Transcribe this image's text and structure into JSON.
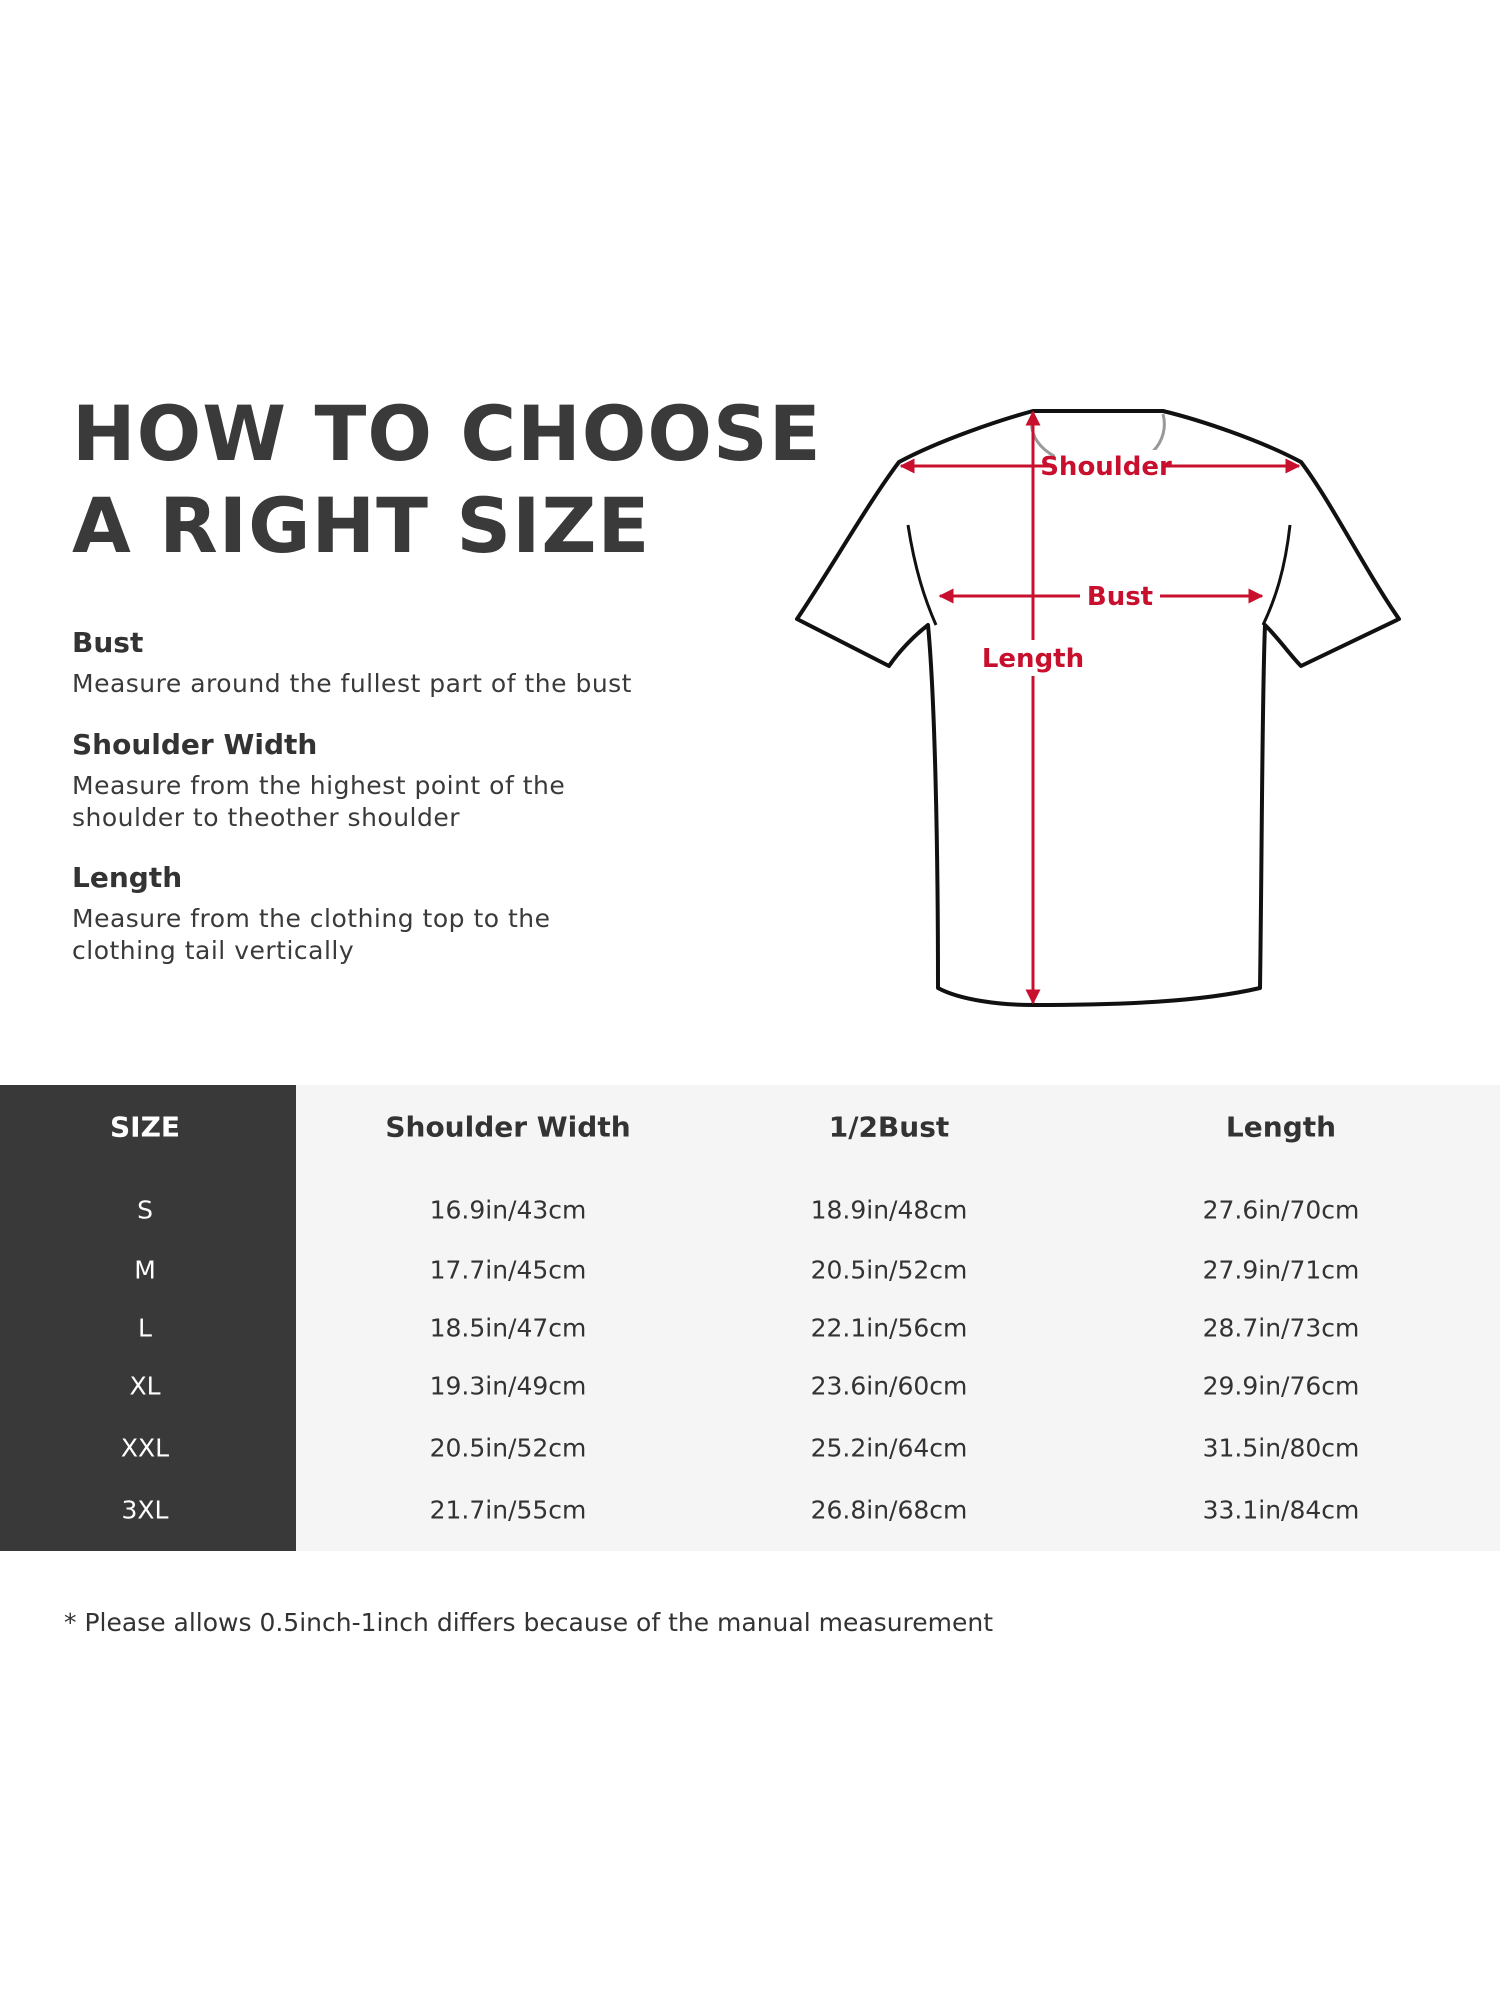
{
  "title": {
    "line1": "HOW TO CHOOSE",
    "line2": "A RIGHT SIZE"
  },
  "measures": [
    {
      "label": "Bust",
      "desc": [
        "Measure around the fullest part of the bust"
      ]
    },
    {
      "label": "Shoulder Width",
      "desc": [
        "Measure from the highest point of the",
        "shoulder to theother shoulder"
      ]
    },
    {
      "label": "Length",
      "desc": [
        "Measure from the clothing top to the",
        "clothing tail vertically"
      ]
    }
  ],
  "diagram": {
    "shoulder": "Shoulder",
    "bust": "Bust",
    "length": "Length",
    "arrow_color": "#c8102e"
  },
  "table": {
    "headers": [
      "SIZE",
      "Shoulder Width",
      "1/2Bust",
      "Length"
    ],
    "rows": [
      [
        "S",
        "16.9in/43cm",
        "18.9in/48cm",
        "27.6in/70cm"
      ],
      [
        "M",
        "17.7in/45cm",
        "20.5in/52cm",
        "27.9in/71cm"
      ],
      [
        "L",
        "18.5in/47cm",
        "22.1in/56cm",
        "28.7in/73cm"
      ],
      [
        "XL",
        "19.3in/49cm",
        "23.6in/60cm",
        "29.9in/76cm"
      ],
      [
        "XXL",
        "20.5in/52cm",
        "25.2in/64cm",
        "31.5in/80cm"
      ],
      [
        "3XL",
        "21.7in/55cm",
        "26.8in/68cm",
        "33.1in/84cm"
      ]
    ]
  },
  "note": "* Please allows 0.5inch-1inch differs because of the  manual measurement"
}
